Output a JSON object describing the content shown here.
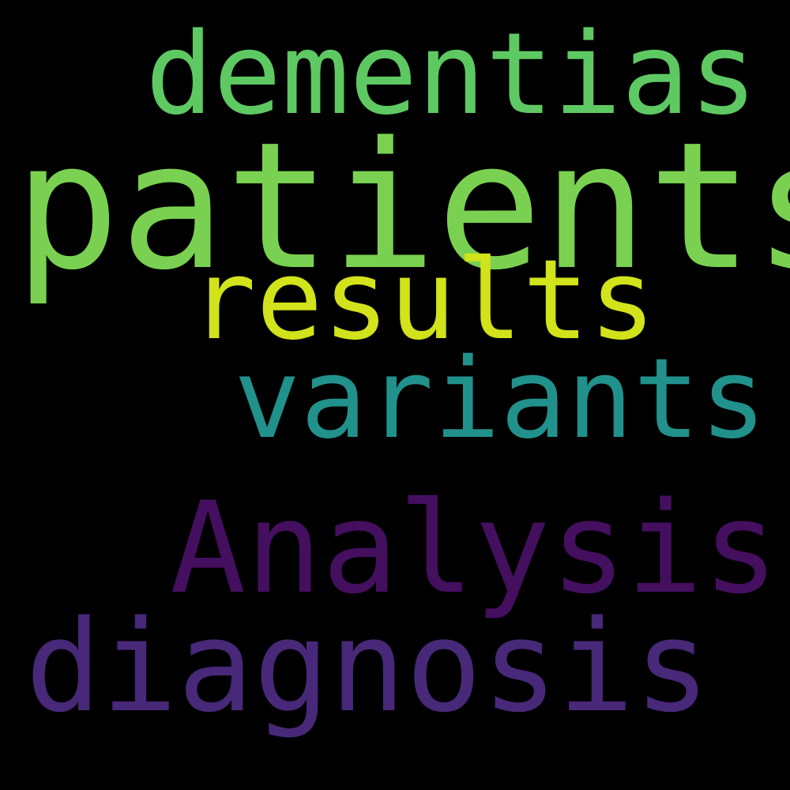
{
  "background_color": "#000000",
  "words": [
    {
      "id": "dementias",
      "text": "dementias",
      "color": "#5ec962"
    },
    {
      "id": "patients",
      "text": "patients",
      "color": "#7ad151"
    },
    {
      "id": "results",
      "text": "results",
      "color": "#d2e21b"
    },
    {
      "id": "variants",
      "text": "variants",
      "color": "#21918c"
    },
    {
      "id": "analysis",
      "text": "Analysis",
      "color": "#440f5f"
    },
    {
      "id": "diagnosis",
      "text": "diagnosis",
      "color": "#482878"
    }
  ]
}
